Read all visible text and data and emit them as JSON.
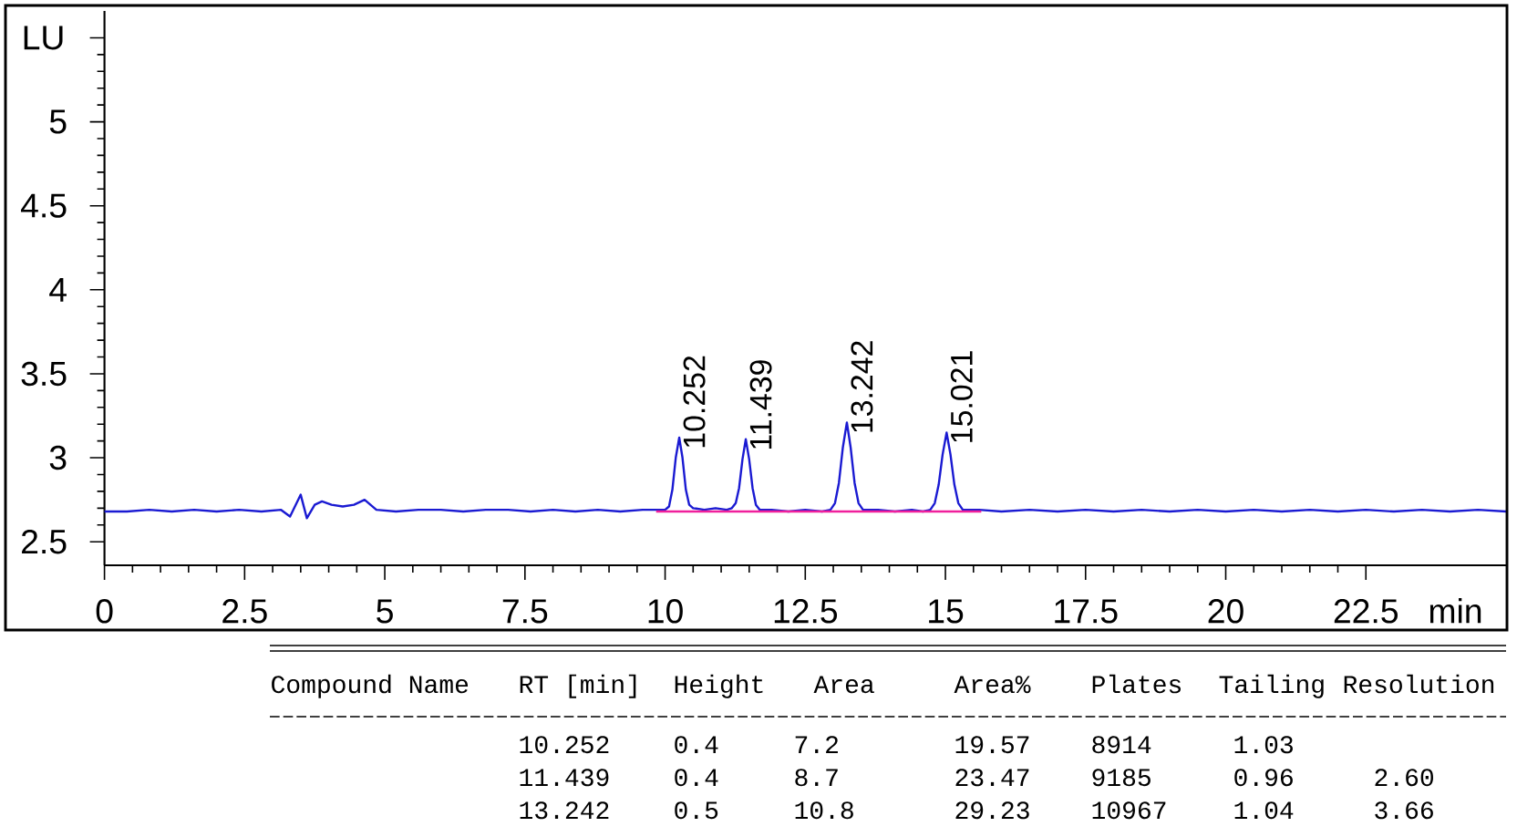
{
  "chart_data": {
    "type": "line",
    "xlabel": "min",
    "ylabel": "LU",
    "xlim": [
      0,
      25
    ],
    "ylim": [
      2.36,
      5.66
    ],
    "xticks": [
      0,
      2.5,
      5,
      7.5,
      10,
      12.5,
      15,
      17.5,
      20,
      22.5
    ],
    "yticks": [
      2.5,
      3,
      3.5,
      4,
      4.5,
      5,
      {
        "value": 5.5,
        "label": null
      }
    ],
    "series": [
      {
        "color": "#1a1ad2",
        "x": [
          0,
          0.4,
          0.8,
          1.2,
          1.6,
          2.0,
          2.4,
          2.8,
          3.15,
          3.31,
          3.5,
          3.61,
          3.75,
          3.88,
          4.05,
          4.25,
          4.45,
          4.64,
          4.85,
          5.2,
          5.6,
          6.0,
          6.4,
          6.8,
          7.2,
          7.6,
          8.0,
          8.4,
          8.8,
          9.2,
          9.6,
          9.9,
          10.0,
          10.07,
          10.13,
          10.19,
          10.252,
          10.31,
          10.37,
          10.43,
          10.5,
          10.7,
          10.9,
          11.1,
          11.19,
          11.26,
          11.32,
          11.38,
          11.439,
          11.5,
          11.56,
          11.62,
          11.69,
          11.9,
          12.2,
          12.5,
          12.8,
          12.95,
          13.03,
          13.1,
          13.17,
          13.242,
          13.31,
          13.38,
          13.45,
          13.53,
          13.8,
          14.1,
          14.4,
          14.6,
          14.73,
          14.81,
          14.88,
          14.95,
          15.021,
          15.09,
          15.16,
          15.23,
          15.31,
          15.6,
          16.0,
          16.5,
          17.0,
          17.5,
          18.0,
          18.5,
          19.0,
          19.5,
          20.0,
          20.5,
          21.0,
          21.5,
          22.0,
          22.5,
          23.0,
          23.5,
          24.0,
          24.5,
          25.0
        ],
        "values": [
          2.68,
          2.68,
          2.69,
          2.68,
          2.69,
          2.68,
          2.69,
          2.68,
          2.69,
          2.65,
          2.78,
          2.64,
          2.72,
          2.74,
          2.72,
          2.71,
          2.72,
          2.75,
          2.69,
          2.68,
          2.69,
          2.69,
          2.68,
          2.69,
          2.69,
          2.68,
          2.69,
          2.68,
          2.69,
          2.68,
          2.69,
          2.69,
          2.69,
          2.71,
          2.81,
          3.0,
          3.12,
          3.0,
          2.81,
          2.72,
          2.7,
          2.69,
          2.7,
          2.69,
          2.7,
          2.73,
          2.82,
          2.99,
          3.11,
          2.99,
          2.82,
          2.72,
          2.69,
          2.69,
          2.68,
          2.69,
          2.68,
          2.69,
          2.73,
          2.85,
          3.06,
          3.21,
          3.06,
          2.85,
          2.73,
          2.69,
          2.69,
          2.68,
          2.69,
          2.68,
          2.69,
          2.73,
          2.84,
          3.02,
          3.15,
          3.02,
          2.84,
          2.73,
          2.69,
          2.69,
          2.68,
          2.69,
          2.68,
          2.69,
          2.68,
          2.69,
          2.68,
          2.69,
          2.68,
          2.69,
          2.68,
          2.69,
          2.68,
          2.69,
          2.68,
          2.69,
          2.68,
          2.69,
          2.68
        ]
      },
      {
        "color": "#f0209c",
        "x": [
          9.84,
          15.64
        ],
        "values": [
          2.68,
          2.68
        ]
      }
    ],
    "annotations": [
      {
        "text": "10.252",
        "x": 10.252,
        "y": 3.12
      },
      {
        "text": "11.439",
        "x": 11.439,
        "y": 3.11
      },
      {
        "text": "13.242",
        "x": 13.242,
        "y": 3.21
      },
      {
        "text": "15.021",
        "x": 15.021,
        "y": 3.15
      },
      "Compound Name",
      "RT [min]",
      "Height",
      "Area",
      "Area%",
      "Plates",
      "Tailing",
      "Resolution",
      "10.252",
      "0.4",
      "7.2",
      "19.57",
      "8914",
      "1.03",
      "11.439",
      "0.4",
      "8.7",
      "23.47",
      "9185",
      "0.96",
      "2.60",
      "13.242",
      "0.5",
      "10.8",
      "29.23",
      "10967",
      "1.04",
      "3.66"
    ]
  }
}
